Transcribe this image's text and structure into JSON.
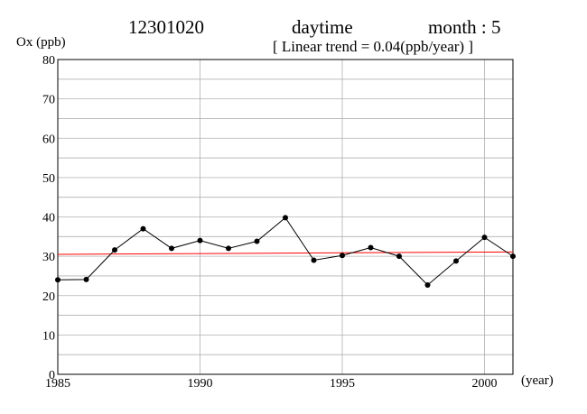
{
  "header": {
    "station": "12301020",
    "period": "daytime",
    "month_label": "month : 5",
    "trend_label": "[ Linear trend = 0.04(ppb/year) ]"
  },
  "chart_data": {
    "type": "line",
    "ylabel": "Ox (ppb)",
    "xlabel": "(year)",
    "xlim": [
      1985,
      2001
    ],
    "ylim": [
      0,
      80
    ],
    "xticks": [
      1985,
      1990,
      1995,
      2000
    ],
    "yticks": [
      0,
      10,
      20,
      30,
      40,
      50,
      60,
      70,
      80
    ],
    "grid": true,
    "series": [
      {
        "x": [
          1985,
          1986,
          1987,
          1988,
          1989,
          1990,
          1991,
          1992,
          1993,
          1994,
          1995,
          1996,
          1997,
          1998,
          1999,
          2000,
          2001
        ],
        "values": [
          24.0,
          24.1,
          31.6,
          37.0,
          32.0,
          34.0,
          32.0,
          33.8,
          39.8,
          29.0,
          30.2,
          32.2,
          30.0,
          22.7,
          28.8,
          34.8,
          30.0
        ],
        "color": "#000000"
      }
    ],
    "trend": {
      "slope": 0.04,
      "start": 30.5,
      "end": 31.1,
      "color": "#ff0000"
    }
  }
}
